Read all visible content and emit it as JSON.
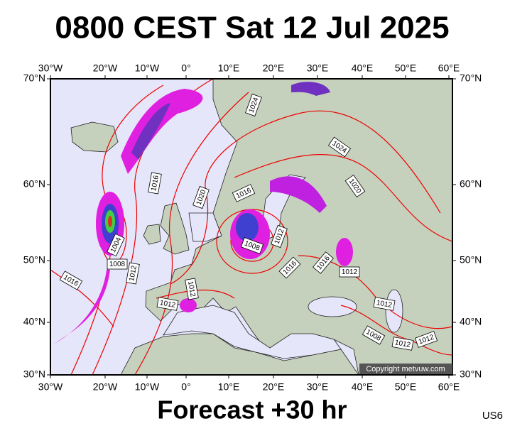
{
  "header": {
    "title": "0800 CEST Sat 12 Jul 2025"
  },
  "map": {
    "lon_labels": [
      "30°W",
      "20°W",
      "10°W",
      "0°",
      "10°E",
      "20°E",
      "30°E",
      "40°E",
      "50°E",
      "60°E"
    ],
    "lat_labels": [
      "70°N",
      "60°N",
      "50°N",
      "40°N",
      "30°N"
    ],
    "isobar_labels": [
      "1024",
      "1016",
      "1020",
      "1016",
      "1024",
      "1020",
      "1004",
      "1008",
      "1012",
      "1016",
      "1008",
      "1012",
      "1016",
      "1016",
      "1012",
      "1012",
      "1012",
      "1012",
      "1008",
      "1012",
      "1012"
    ],
    "copyright": "Copyright metvuw.com"
  },
  "footer": {
    "forecast": "Forecast +30 hr",
    "code": "US6"
  }
}
